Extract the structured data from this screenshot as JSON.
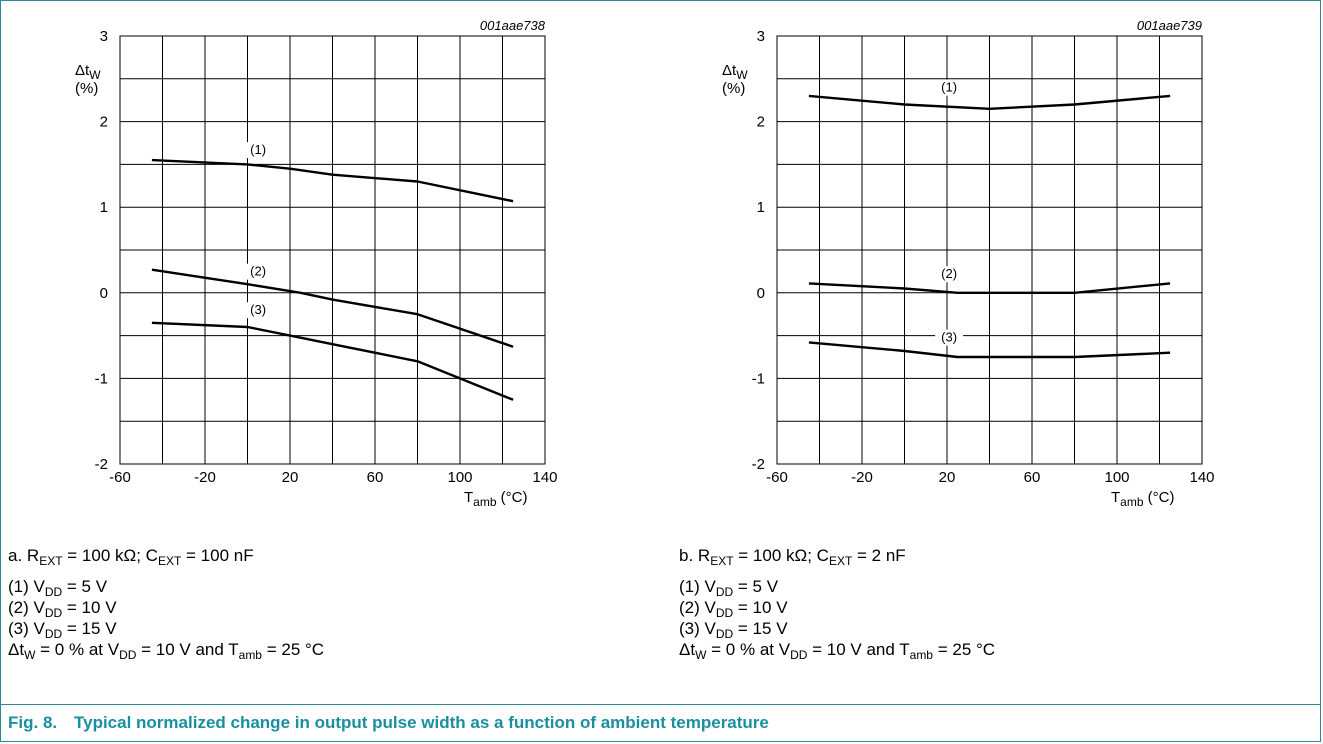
{
  "figure": {
    "number": "Fig. 8.",
    "title": "Typical normalized change in output pulse width as a function of ambient temperature"
  },
  "chart_data": [
    {
      "type": "line",
      "code": "001aae738",
      "ylabel": {
        "main": "Δt",
        "sub": "W",
        "unit": "(%)"
      },
      "xlabel": {
        "main": "T",
        "sub": "amb",
        "unit": " (°C)"
      },
      "xlim": [
        -60,
        140
      ],
      "ylim": [
        -2,
        3
      ],
      "xticks": [
        "-60",
        "-20",
        "20",
        "60",
        "100",
        "140"
      ],
      "yticks": [
        "-2",
        "-1",
        "0",
        "1",
        "2",
        "3"
      ],
      "grid": true,
      "series": [
        {
          "name": "(1)",
          "x": [
            -45,
            0,
            20,
            40,
            80,
            125
          ],
          "y": [
            1.55,
            1.5,
            1.45,
            1.38,
            1.3,
            1.07
          ],
          "label_at": [
            5,
            1.62
          ]
        },
        {
          "name": "(2)",
          "x": [
            -45,
            0,
            25,
            40,
            80,
            125
          ],
          "y": [
            0.27,
            0.1,
            0.0,
            -0.08,
            -0.25,
            -0.63
          ],
          "label_at": [
            5,
            0.2
          ]
        },
        {
          "name": "(3)",
          "x": [
            -45,
            0,
            20,
            40,
            80,
            125
          ],
          "y": [
            -0.35,
            -0.4,
            -0.5,
            -0.6,
            -0.8,
            -1.25
          ],
          "label_at": [
            5,
            -0.25
          ]
        }
      ],
      "condition": {
        "a_prefix": "a. R",
        "a_sub": "EXT",
        "a_mid": " = 100 kΩ; C",
        "b_sub": "EXT",
        "b_suffix": " = 100 nF"
      },
      "notes": [
        {
          "prefix": "(1) V",
          "sub": "DD",
          "suffix": " = 5 V"
        },
        {
          "prefix": "(2) V",
          "sub": "DD",
          "suffix": " = 10 V"
        },
        {
          "prefix": "(3) V",
          "sub": "DD",
          "suffix": " = 15 V"
        }
      ],
      "footnote": {
        "p1": "Δt",
        "s1": "W",
        "p2": " = 0 % at V",
        "s2": "DD",
        "p3": " = 10 V and T",
        "s3": "amb",
        "p4": " = 25 °C"
      }
    },
    {
      "type": "line",
      "code": "001aae739",
      "ylabel": {
        "main": "Δt",
        "sub": "W",
        "unit": "(%)"
      },
      "xlabel": {
        "main": "T",
        "sub": "amb",
        "unit": " (°C)"
      },
      "xlim": [
        -60,
        140
      ],
      "ylim": [
        -2,
        3
      ],
      "xticks": [
        "-60",
        "-20",
        "20",
        "60",
        "100",
        "140"
      ],
      "yticks": [
        "-2",
        "-1",
        "0",
        "1",
        "2",
        "3"
      ],
      "grid": true,
      "series": [
        {
          "name": "(1)",
          "x": [
            -45,
            0,
            40,
            80,
            125
          ],
          "y": [
            2.3,
            2.2,
            2.15,
            2.2,
            2.3
          ],
          "label_at": [
            21,
            2.35
          ]
        },
        {
          "name": "(2)",
          "x": [
            -45,
            0,
            25,
            80,
            125
          ],
          "y": [
            0.11,
            0.05,
            0.0,
            0.0,
            0.11
          ],
          "label_at": [
            21,
            0.17
          ]
        },
        {
          "name": "(3)",
          "x": [
            -45,
            0,
            25,
            80,
            125
          ],
          "y": [
            -0.58,
            -0.68,
            -0.75,
            -0.75,
            -0.7
          ],
          "label_at": [
            21,
            -0.57
          ]
        }
      ],
      "condition": {
        "a_prefix": "b. R",
        "a_sub": "EXT",
        "a_mid": " = 100 kΩ; C",
        "b_sub": "EXT",
        "b_suffix": " = 2 nF"
      },
      "notes": [
        {
          "prefix": "(1) V",
          "sub": "DD",
          "suffix": " = 5 V"
        },
        {
          "prefix": "(2) V",
          "sub": "DD",
          "suffix": " = 10 V"
        },
        {
          "prefix": "(3) V",
          "sub": "DD",
          "suffix": " = 15 V"
        }
      ],
      "footnote": {
        "p1": "Δt",
        "s1": "W",
        "p2": " = 0 % at V",
        "s2": "DD",
        "p3": " = 10 V and T",
        "s3": "amb",
        "p4": " = 25 °C"
      }
    }
  ]
}
